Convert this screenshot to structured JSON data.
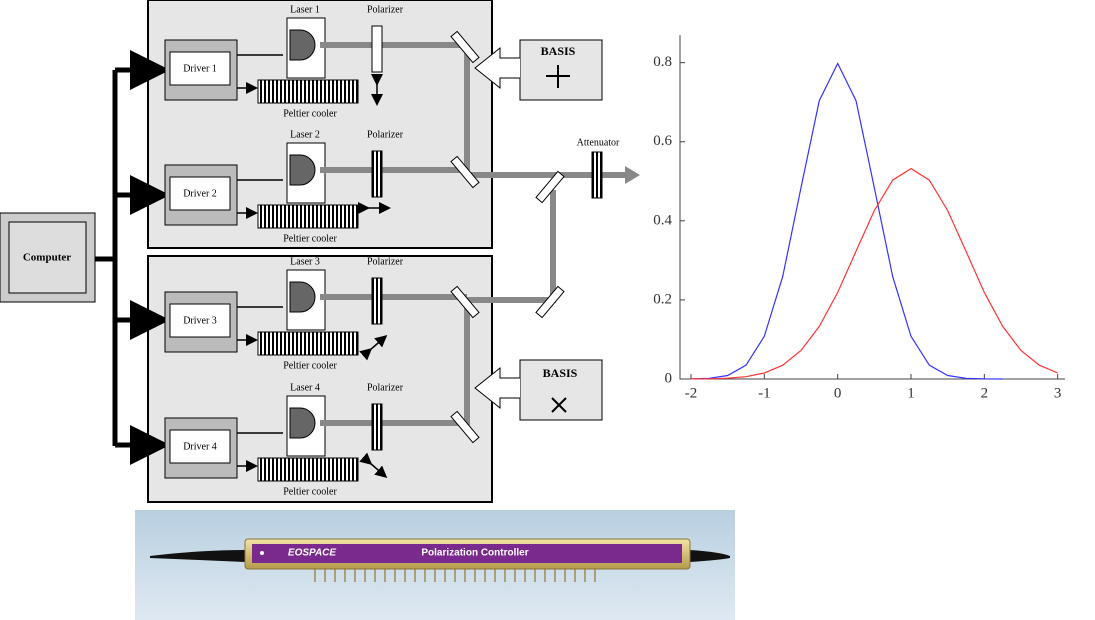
{
  "diagram": {
    "computer": "Computer",
    "channels": [
      {
        "driver": "Driver 1",
        "laser": "Laser 1",
        "polarizer": "Polarizer",
        "cooler": "Peltier cooler"
      },
      {
        "driver": "Driver 2",
        "laser": "Laser 2",
        "polarizer": "Polarizer",
        "cooler": "Peltier cooler"
      },
      {
        "driver": "Driver 3",
        "laser": "Laser 3",
        "polarizer": "Polarizer",
        "cooler": "Peltier cooler"
      },
      {
        "driver": "Driver 4",
        "laser": "Laser 4",
        "polarizer": "Polarizer",
        "cooler": "Peltier cooler"
      }
    ],
    "basis": [
      "BASIS",
      "BASIS"
    ],
    "attenuator": "Attenuator"
  },
  "chart_data": {
    "type": "line",
    "x": [
      -2,
      -1.75,
      -1.5,
      -1.25,
      -1,
      -0.75,
      -0.5,
      -0.25,
      0,
      0.25,
      0.5,
      0.75,
      1,
      1.25,
      1.5,
      1.75,
      2,
      2.25,
      2.5,
      2.75,
      3
    ],
    "series": [
      {
        "color": "#3333ff",
        "values": [
          0.0003,
          0.0017,
          0.0089,
          0.035,
          0.108,
          0.259,
          0.484,
          0.704,
          0.798,
          0.704,
          0.484,
          0.259,
          0.108,
          0.035,
          0.0089,
          0.0017,
          0.0003,
          0.0,
          null,
          null,
          null
        ]
      },
      {
        "color": "#ff3333",
        "values": [
          0.0002,
          0.0006,
          0.0021,
          0.0059,
          0.0152,
          0.035,
          0.072,
          0.133,
          0.219,
          0.323,
          0.426,
          0.503,
          0.532,
          0.503,
          0.426,
          0.323,
          0.219,
          0.133,
          0.072,
          0.035,
          0.0152
        ]
      }
    ],
    "xlim": [
      -2.15,
      3.1
    ],
    "ylim": [
      0,
      0.87
    ],
    "xticks": [
      -2,
      -1,
      0,
      1,
      2,
      3
    ],
    "yticks": [
      0,
      0.2,
      0.4,
      0.6,
      0.8
    ]
  },
  "photo": {
    "brand": "EOSPACE",
    "product": "Polarization Controller"
  }
}
